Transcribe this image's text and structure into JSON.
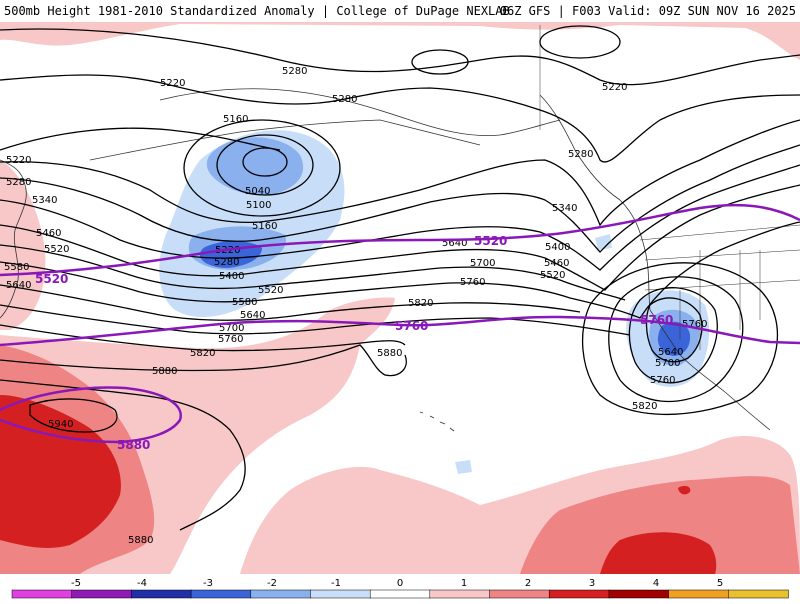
{
  "header": {
    "title": "500mb Height 1981-2010 Standardized Anomaly | College of DuPage NEXLAB",
    "run_info": "06Z GFS | F003 Valid: 09Z SUN NOV 16 2025"
  },
  "colors": {
    "contour": "#000000",
    "highlight_contour": "#8a18b8",
    "coast": "#333333"
  },
  "contour_labels": [
    "5280",
    "5220",
    "5280",
    "5160",
    "5040",
    "5100",
    "5160",
    "5220",
    "5280",
    "5400",
    "5520",
    "5580",
    "5640",
    "5700",
    "5760",
    "5820",
    "5880",
    "5880",
    "5820",
    "5760",
    "5700",
    "5640",
    "5520",
    "5460",
    "5400",
    "5340",
    "5280",
    "5220",
    "5220",
    "5280",
    "5340",
    "5460",
    "5520",
    "5580",
    "5640",
    "5940",
    "5880",
    "5760",
    "5640",
    "5700",
    "5760",
    "5820"
  ],
  "highlight_labels": [
    "5520",
    "5520",
    "5760",
    "5760",
    "5880"
  ],
  "legend": {
    "ticks": [
      "-5",
      "-4",
      "-3",
      "-2",
      "-1",
      "0",
      "1",
      "2",
      "3",
      "4",
      "5"
    ],
    "colors": [
      "#e040e0",
      "#8e1ab8",
      "#2030a8",
      "#3a64d8",
      "#8ab0ee",
      "#c8def8",
      "#ffffff",
      "#f8c8c8",
      "#ee8484",
      "#d42020",
      "#a00000",
      "#f0a020",
      "#e8c030"
    ]
  }
}
